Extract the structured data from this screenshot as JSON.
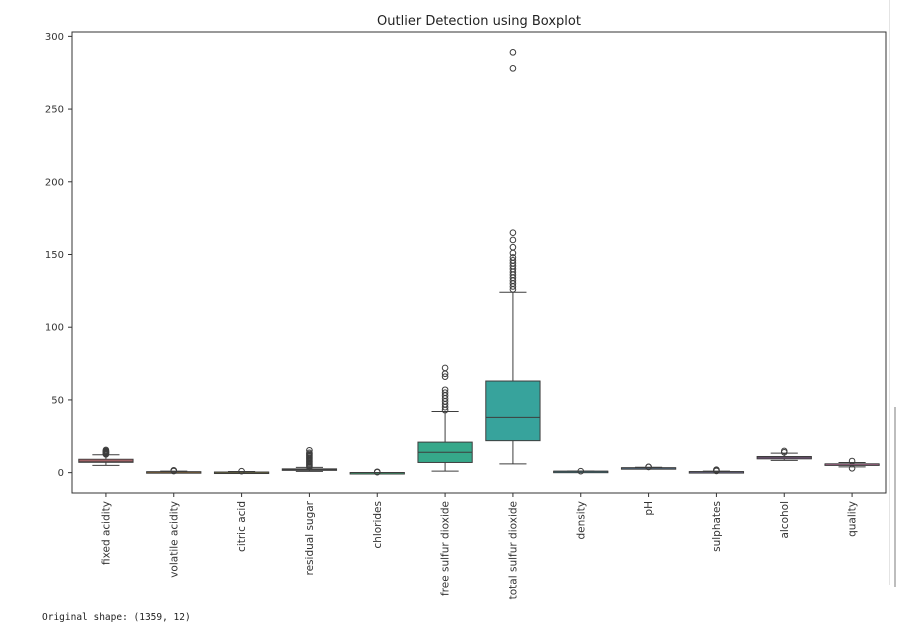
{
  "output_text": "Original shape: (1359, 12)",
  "chart_data": {
    "type": "box",
    "title": "Outlier Detection using Boxplot",
    "xlabel": "",
    "ylabel": "",
    "ylim": [
      -14,
      303
    ],
    "yticks": [
      0,
      50,
      100,
      150,
      200,
      250,
      300
    ],
    "grid": false,
    "categories": [
      {
        "name": "fixed acidity",
        "min": 5,
        "q1": 7.1,
        "median": 7.9,
        "q3": 9.2,
        "max": 12.3,
        "outliers": [
          12.6,
          13.0,
          13.4,
          13.8,
          14.2,
          14.6,
          15.0,
          15.6
        ],
        "color": "#e0787f"
      },
      {
        "name": "volatile acidity",
        "min": 0.12,
        "q1": 0.39,
        "median": 0.52,
        "q3": 0.64,
        "max": 1.0,
        "outliers": [
          1.1,
          1.3,
          1.6
        ],
        "color": "#d8902e"
      },
      {
        "name": "citric acid",
        "min": 0,
        "q1": 0.09,
        "median": 0.26,
        "q3": 0.43,
        "max": 0.79,
        "outliers": [
          1.0
        ],
        "color": "#a8a03a"
      },
      {
        "name": "residual sugar",
        "min": 0.9,
        "q1": 1.9,
        "median": 2.2,
        "q3": 2.6,
        "max": 3.6,
        "outliers": [
          4.0,
          4.8,
          5.6,
          6.4,
          7.2,
          8.0,
          8.8,
          9.6,
          10.4,
          11.2,
          12.0,
          12.8,
          13.6,
          15.4
        ],
        "color": "#75ab3e"
      },
      {
        "name": "chlorides",
        "min": 0.04,
        "q1": 0.07,
        "median": 0.08,
        "q3": 0.09,
        "max": 0.12,
        "outliers": [
          0.3,
          0.6
        ],
        "color": "#3bb078"
      },
      {
        "name": "free sulfur dioxide",
        "min": 1,
        "q1": 7,
        "median": 14,
        "q3": 21,
        "max": 42,
        "outliers": [
          43,
          45,
          47,
          49,
          51,
          53,
          55,
          57,
          66,
          68,
          72
        ],
        "color": "#36a88a"
      },
      {
        "name": "total sulfur dioxide",
        "min": 6,
        "q1": 22,
        "median": 38,
        "q3": 63,
        "max": 124,
        "outliers": [
          126,
          128,
          130,
          132,
          134,
          136,
          138,
          140,
          142,
          144,
          146,
          148,
          151,
          155,
          160,
          165,
          278,
          289
        ],
        "color": "#37a39c"
      },
      {
        "name": "density",
        "min": 0.99,
        "q1": 0.996,
        "median": 0.997,
        "q3": 0.998,
        "max": 1.001,
        "outliers": [
          1.003
        ],
        "color": "#38a5b8"
      },
      {
        "name": "pH",
        "min": 2.9,
        "q1": 3.21,
        "median": 3.31,
        "q3": 3.4,
        "max": 3.68,
        "outliers": [
          3.9,
          4.0
        ],
        "color": "#6aa3d8"
      },
      {
        "name": "sulphates",
        "min": 0.33,
        "q1": 0.55,
        "median": 0.62,
        "q3": 0.73,
        "max": 1.0,
        "outliers": [
          1.2,
          1.6,
          2.0
        ],
        "color": "#9b92dd"
      },
      {
        "name": "alcohol",
        "min": 8.4,
        "q1": 9.5,
        "median": 10.2,
        "q3": 11.1,
        "max": 13.4,
        "outliers": [
          14.0,
          14.9
        ],
        "color": "#d57fe0"
      },
      {
        "name": "quality",
        "min": 4,
        "q1": 5,
        "median": 6,
        "q3": 6,
        "max": 7,
        "outliers": [
          3,
          8
        ],
        "color": "#e87cba"
      }
    ]
  }
}
